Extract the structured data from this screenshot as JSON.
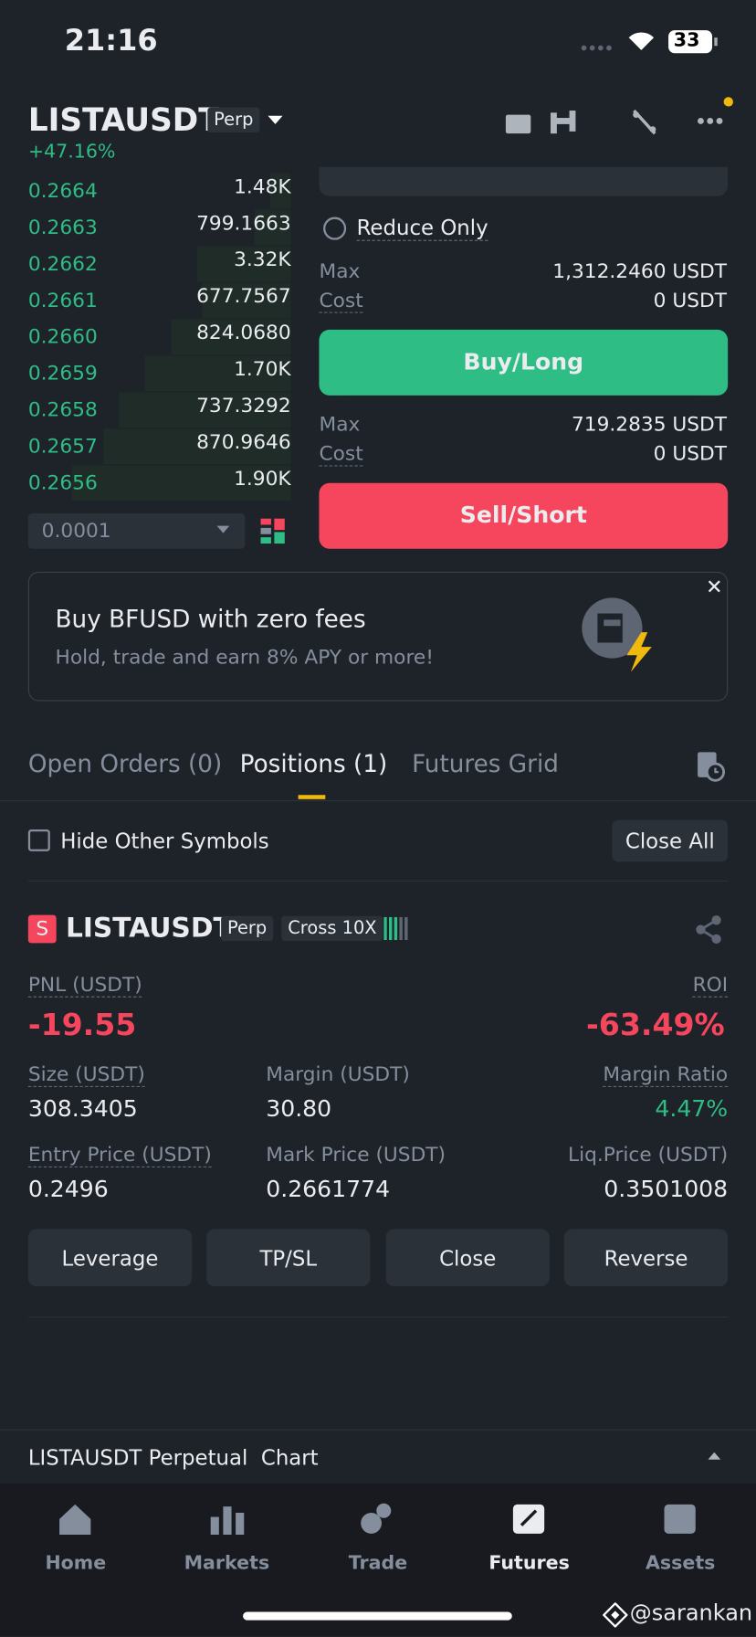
{
  "status": {
    "time": "21:16",
    "battery": "33"
  },
  "header": {
    "symbol": "LISTAUSDT",
    "badge": "Perp",
    "change": "+47.16%"
  },
  "order_book": {
    "rows": [
      {
        "price": "0.2664",
        "amount": "1.48K"
      },
      {
        "price": "0.2663",
        "amount": "799.1663"
      },
      {
        "price": "0.2662",
        "amount": "3.32K"
      },
      {
        "price": "0.2661",
        "amount": "677.7567"
      },
      {
        "price": "0.2660",
        "amount": "824.0680"
      },
      {
        "price": "0.2659",
        "amount": "1.70K"
      },
      {
        "price": "0.2658",
        "amount": "737.3292"
      },
      {
        "price": "0.2657",
        "amount": "870.9646"
      },
      {
        "price": "0.2656",
        "amount": "1.90K"
      }
    ],
    "tick_size": "0.0001"
  },
  "order_form": {
    "reduce_only": "Reduce Only",
    "buy": {
      "max_label": "Max",
      "max_value": "1,312.2460 USDT",
      "cost_label": "Cost",
      "cost_value": "0 USDT",
      "button": "Buy/Long"
    },
    "sell": {
      "max_label": "Max",
      "max_value": "719.2835 USDT",
      "cost_label": "Cost",
      "cost_value": "0 USDT",
      "button": "Sell/Short"
    }
  },
  "promo": {
    "title": "Buy BFUSD with zero fees",
    "subtitle": "Hold, trade and earn 8% APY or more!"
  },
  "tabs": [
    "Open Orders (0)",
    "Positions (1)",
    "Futures Grid"
  ],
  "filter": {
    "hide_label": "Hide Other Symbols",
    "close_all": "Close All"
  },
  "position": {
    "side": "S",
    "symbol": "LISTAUSDT",
    "type": "Perp",
    "margin_mode": "Cross 10X",
    "pnl": {
      "label": "PNL (USDT)",
      "value": "-19.55"
    },
    "roi": {
      "label": "ROI",
      "value": "-63.49%"
    },
    "size": {
      "label": "Size (USDT)",
      "value": "308.3405"
    },
    "margin": {
      "label": "Margin (USDT)",
      "value": "30.80"
    },
    "margin_ratio": {
      "label": "Margin Ratio",
      "value": "4.47%"
    },
    "entry_price": {
      "label": "Entry Price (USDT)",
      "value": "0.2496"
    },
    "mark_price": {
      "label": "Mark Price (USDT)",
      "value": "0.2661774"
    },
    "liq_price": {
      "label": "Liq.Price (USDT)",
      "value": "0.3501008"
    },
    "buttons": [
      "Leverage",
      "TP/SL",
      "Close",
      "Reverse"
    ]
  },
  "chart_bar": "LISTAUSDT Perpetual  Chart",
  "nav": [
    "Home",
    "Markets",
    "Trade",
    "Futures",
    "Assets"
  ],
  "watermark": "@sarankan"
}
